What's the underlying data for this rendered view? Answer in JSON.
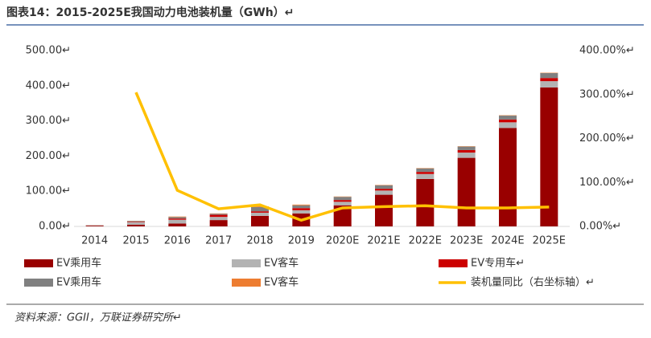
{
  "chart_data": {
    "type": "bar",
    "title": "图表14：2015-2025E我国动力电池装机量（GWh）↵",
    "source": "资料来源：GGII，万联证券研究所↵",
    "categories": [
      "2014",
      "2015",
      "2016",
      "2017",
      "2018",
      "2019",
      "2020E",
      "2021E",
      "2022E",
      "2023E",
      "2024E",
      "2025E"
    ],
    "series": [
      {
        "name": "EV乘用车",
        "color": "#990000",
        "values": [
          2,
          5,
          8,
          18,
          30,
          37,
          60,
          90,
          135,
          195,
          280,
          395
        ]
      },
      {
        "name": "EV客车",
        "color": "#b3b3b3",
        "values": [
          1,
          7,
          11,
          9,
          9,
          9,
          10,
          12,
          14,
          15,
          16,
          18
        ]
      },
      {
        "name": "EV专用车↵",
        "color": "#cc0000",
        "values": [
          0.3,
          1.5,
          3.5,
          6,
          4,
          6,
          5,
          5,
          6,
          7,
          8,
          9
        ]
      },
      {
        "name": "EV乘用车",
        "color": "#808080",
        "values": [
          0.3,
          2,
          4,
          3,
          12,
          8,
          9,
          10,
          10,
          10,
          11,
          14
        ]
      },
      {
        "name": "EV客车",
        "color": "#ed7d31",
        "values": [
          0.1,
          0.5,
          1.5,
          1,
          2,
          2,
          1,
          1,
          1,
          1,
          1,
          1
        ]
      },
      {
        "name": "装机量同比（右坐标轴）↵",
        "color": "#ffc000",
        "axis": "y2",
        "line": true,
        "values": [
          null,
          305,
          82,
          40,
          49,
          14,
          42,
          45,
          47,
          42,
          42,
          44
        ]
      }
    ],
    "ylim": [
      0,
      500
    ],
    "yticks": [
      {
        "value": 0,
        "label": "0.00↵"
      },
      {
        "value": 100,
        "label": "100.00↵"
      },
      {
        "value": 200,
        "label": "200.00↵"
      },
      {
        "value": 300,
        "label": "300.00↵"
      },
      {
        "value": 400,
        "label": "400.00↵"
      },
      {
        "value": 500,
        "label": "500.00↵"
      }
    ],
    "y2lim": [
      0,
      400
    ],
    "y2ticks": [
      {
        "value": 0,
        "label": "0.00%↵"
      },
      {
        "value": 100,
        "label": "100.00%↵"
      },
      {
        "value": 200,
        "label": "200.00%↵"
      },
      {
        "value": 300,
        "label": "300.00%↵"
      },
      {
        "value": 400,
        "label": "400.00%↵"
      }
    ]
  }
}
